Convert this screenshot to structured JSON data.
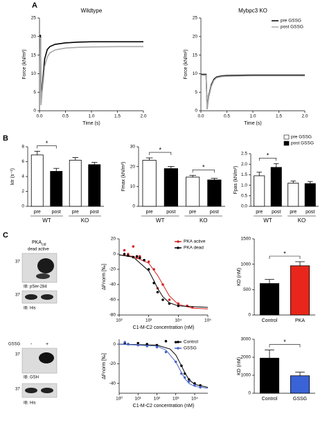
{
  "panels": [
    "A",
    "B",
    "C"
  ],
  "blots": {
    "top": {
      "title": "PKA",
      "title_sub": "cat",
      "lanes": "dead active",
      "rows": [
        {
          "marker": "37",
          "label": "IB: pSer-284"
        },
        {
          "marker": "37",
          "label": "IB: His"
        }
      ]
    },
    "bottom": {
      "title": "GSSG",
      "lanes": [
        "-",
        "+"
      ],
      "rows": [
        {
          "marker": "37",
          "label": "IB: GSH"
        },
        {
          "marker": "37",
          "label": "IB: His"
        }
      ]
    }
  },
  "chart_data": [
    {
      "type": "line",
      "title": "Wildtype",
      "xlabel": "Time (s)",
      "ylabel": "Force (kN/m²)",
      "xlim": [
        0,
        2
      ],
      "xticks": [
        {
          "value": 0,
          "label": "0.0"
        },
        {
          "value": 0.5,
          "label": "0.5"
        },
        {
          "value": 1,
          "label": "1.0"
        },
        {
          "value": 1.5,
          "label": "1.5"
        },
        {
          "value": 2,
          "label": "2.0"
        }
      ],
      "ylim": [
        0,
        25
      ],
      "yticks": [
        0,
        5,
        10,
        15,
        20,
        25
      ],
      "series": [
        {
          "name": "pre GSSG",
          "color": "#000000",
          "x": [
            0,
            0.02,
            0.03,
            0.05,
            0.08,
            0.1,
            0.15,
            0.2,
            0.3,
            0.5,
            0.75,
            1,
            1.5,
            2
          ],
          "values": [
            20.3,
            20.3,
            2,
            6,
            11,
            14,
            16.5,
            17.3,
            17.9,
            18.3,
            18.5,
            18.6,
            18.6,
            18.6
          ]
        },
        {
          "name": "post GSSG",
          "color": "#a8a8a8",
          "x": [
            0,
            0.02,
            0.03,
            0.05,
            0.08,
            0.1,
            0.15,
            0.2,
            0.3,
            0.5,
            0.75,
            1,
            1.5,
            2
          ],
          "values": [
            19.6,
            19.6,
            1.5,
            5,
            9,
            12,
            14.5,
            15.6,
            16.4,
            16.9,
            17.1,
            17.2,
            17.3,
            17.3
          ]
        }
      ]
    },
    {
      "type": "line",
      "title": "Mybpc3 KO",
      "xlabel": "Time (s)",
      "ylabel": "Force (kN/m²)",
      "xlim": [
        0,
        2
      ],
      "xticks": [
        {
          "value": 0,
          "label": "0.0"
        },
        {
          "value": 0.5,
          "label": "0.5"
        },
        {
          "value": 1,
          "label": "1.0"
        },
        {
          "value": 1.5,
          "label": "1.5"
        },
        {
          "value": 2,
          "label": "2.0"
        }
      ],
      "ylim": [
        0,
        25
      ],
      "yticks": [
        0,
        5,
        10,
        15,
        20,
        25
      ],
      "legend": "upper right",
      "series": [
        {
          "name": "pre GSSG",
          "color": "#000000",
          "x": [
            0,
            0.1,
            0.12,
            0.15,
            0.2,
            0.25,
            0.3,
            0.4,
            0.5,
            1,
            1.5,
            2
          ],
          "values": [
            9.8,
            9.8,
            0.5,
            4,
            7,
            8.5,
            9.1,
            9.4,
            9.5,
            9.6,
            9.6,
            9.6
          ]
        },
        {
          "name": "post GSSG",
          "color": "#a8a8a8",
          "x": [
            0,
            0.1,
            0.12,
            0.15,
            0.2,
            0.25,
            0.3,
            0.4,
            0.5,
            1,
            1.5,
            2
          ],
          "values": [
            9.6,
            9.6,
            0.4,
            3.6,
            6.6,
            8.2,
            8.9,
            9.2,
            9.3,
            9.4,
            9.4,
            9.4
          ]
        }
      ]
    },
    {
      "type": "bar",
      "ylabel": "ktr (s⁻¹)",
      "categories": [
        "pre",
        "post",
        "pre",
        "post"
      ],
      "groups": [
        "WT",
        "KO"
      ],
      "values": [
        6.9,
        4.7,
        6.2,
        5.6
      ],
      "errors": [
        0.5,
        0.4,
        0.35,
        0.3
      ],
      "colors": [
        "#ffffff",
        "#000000",
        "#ffffff",
        "#000000"
      ],
      "ylim": [
        0,
        8
      ],
      "yticks": [
        0,
        2,
        4,
        6,
        8
      ],
      "significance": [
        {
          "text": "*",
          "bars": [
            0,
            1
          ]
        }
      ]
    },
    {
      "type": "bar",
      "ylabel": "Fmax (kN/m²)",
      "categories": [
        "pre",
        "post",
        "pre",
        "post"
      ],
      "groups": [
        "WT",
        "KO"
      ],
      "values": [
        23.2,
        19,
        14.7,
        13.3
      ],
      "errors": [
        1.2,
        1.1,
        0.9,
        0.8
      ],
      "colors": [
        "#ffffff",
        "#000000",
        "#ffffff",
        "#000000"
      ],
      "ylim": [
        0,
        30
      ],
      "yticks": [
        0,
        10,
        20,
        30
      ],
      "significance": [
        {
          "text": "*",
          "bars": [
            0,
            1
          ]
        },
        {
          "text": "*",
          "bars": [
            2,
            3
          ]
        }
      ]
    },
    {
      "type": "bar",
      "ylabel": "Fpas (kN/m²)",
      "categories": [
        "pre",
        "post",
        "pre",
        "post"
      ],
      "groups": [
        "WT",
        "KO"
      ],
      "values": [
        1.45,
        1.85,
        1.1,
        1.08
      ],
      "errors": [
        0.17,
        0.18,
        0.1,
        0.1
      ],
      "colors": [
        "#ffffff",
        "#000000",
        "#ffffff",
        "#000000"
      ],
      "ylim": [
        0,
        2.5
      ],
      "yticks": [
        {
          "value": 0,
          "label": "0.0"
        },
        {
          "value": 0.5,
          "label": "0.5"
        },
        {
          "value": 1,
          "label": "1.0"
        },
        {
          "value": 1.5,
          "label": "1.5"
        },
        {
          "value": 2,
          "label": "2.0"
        },
        {
          "value": 2.5,
          "label": "2.5"
        }
      ],
      "significance": [
        {
          "text": "*",
          "bars": [
            0,
            1
          ]
        }
      ],
      "legend": [
        {
          "name": "pre GSSG",
          "color": "#ffffff"
        },
        {
          "name": "post GSSG",
          "color": "#000000"
        }
      ]
    },
    {
      "type": "scatter",
      "xlabel": "C1-M-C2 concentration (nM)",
      "ylabel": "ΔFnorm [‰]",
      "xlog": true,
      "xlim": [
        100,
        100000
      ],
      "xticks": [
        {
          "value": 100,
          "label": "10²"
        },
        {
          "value": 1000,
          "label": "10³"
        },
        {
          "value": 10000,
          "label": "10⁴"
        },
        {
          "value": 100000,
          "label": "10⁵"
        }
      ],
      "ylim": [
        -80,
        20
      ],
      "yticks": [
        20,
        0,
        -20,
        -40,
        -60,
        -80
      ],
      "legend": "upper right",
      "series": [
        {
          "name": "PKA active",
          "color": "#d42020",
          "x": [
            150,
            200,
            300,
            400,
            500,
            700,
            1000,
            1500,
            2000,
            3000,
            5000,
            10000,
            20000,
            30000
          ],
          "values": [
            5,
            0,
            10,
            -5,
            -3,
            -8,
            -10,
            -20,
            -45,
            -40,
            -60,
            -65,
            -68,
            -70
          ],
          "fit_x": [
            100,
            300,
            1000,
            2000,
            3000,
            5000,
            10000,
            30000,
            100000
          ],
          "fit_values": [
            -1,
            -3,
            -12,
            -28,
            -40,
            -55,
            -66,
            -71,
            -72
          ]
        },
        {
          "name": "PKA dead",
          "color": "#000000",
          "x": [
            150,
            200,
            300,
            400,
            500,
            700,
            1000,
            1500,
            2000,
            3000,
            5000,
            10000
          ],
          "values": [
            0,
            -2,
            -4,
            -3,
            -5,
            -8,
            -20,
            -38,
            -50,
            -60,
            -65,
            -68
          ],
          "fit_x": [
            100,
            300,
            1000,
            1500,
            2000,
            3000,
            5000,
            10000,
            100000
          ],
          "fit_values": [
            -1,
            -4,
            -22,
            -35,
            -45,
            -56,
            -64,
            -68,
            -70
          ]
        }
      ]
    },
    {
      "type": "bar",
      "ylabel": "KD (nM)",
      "categories": [
        "Control",
        "PKA"
      ],
      "values": [
        620,
        970
      ],
      "errors": [
        80,
        80
      ],
      "colors": [
        "#000000",
        "#e8261b"
      ],
      "ylim": [
        0,
        1500
      ],
      "yticks": [
        0,
        500,
        1000,
        1500
      ],
      "significance": [
        {
          "text": "*",
          "bars": [
            0,
            1
          ]
        }
      ]
    },
    {
      "type": "scatter",
      "xlabel": "C1-M-C2 concentration (nM)",
      "ylabel": "ΔFnorm [‰]",
      "xlog": true,
      "xlim": [
        1,
        50000
      ],
      "xticks": [
        {
          "value": 1,
          "label": "10⁰"
        },
        {
          "value": 10,
          "label": "10¹"
        },
        {
          "value": 100,
          "label": "10²"
        },
        {
          "value": 1000,
          "label": "10³"
        },
        {
          "value": 10000,
          "label": "10⁴"
        }
      ],
      "ylim": [
        -50,
        5
      ],
      "yticks": [
        0,
        -20,
        -40
      ],
      "legend": "upper right",
      "series": [
        {
          "name": "Control",
          "color": "#000000",
          "x": [
            2,
            3,
            10,
            30,
            100,
            300,
            1000,
            2000,
            3000,
            5000,
            10000,
            20000
          ],
          "values": [
            1,
            0,
            1,
            0,
            -1,
            3,
            2,
            -22,
            -30,
            -36,
            -40,
            -42
          ],
          "fit_x": [
            1,
            100,
            500,
            1000,
            2000,
            3000,
            5000,
            10000,
            50000
          ],
          "fit_values": [
            0,
            -1,
            -5,
            -11,
            -22,
            -29,
            -36,
            -41,
            -44
          ]
        },
        {
          "name": "GSSG",
          "color": "#4866c8",
          "x": [
            2,
            3,
            10,
            30,
            100,
            300,
            1000,
            2000,
            3000,
            5000,
            10000,
            20000
          ],
          "values": [
            2,
            0,
            -1,
            -2,
            -3,
            -8,
            -18,
            -30,
            -34,
            -38,
            -42,
            -44
          ],
          "fit_x": [
            1,
            100,
            300,
            1000,
            2000,
            3000,
            5000,
            10000,
            50000
          ],
          "fit_values": [
            0,
            -2,
            -6,
            -18,
            -29,
            -35,
            -40,
            -43,
            -45
          ]
        }
      ]
    },
    {
      "type": "bar",
      "ylabel": "KD (nM)",
      "categories": [
        "Control",
        "GSSG"
      ],
      "values": [
        1950,
        970
      ],
      "errors": [
        450,
        200
      ],
      "colors": [
        "#000000",
        "#3a63d8"
      ],
      "ylim": [
        0,
        3000
      ],
      "yticks": [
        0,
        1000,
        2000,
        3000
      ],
      "significance": [
        {
          "text": "*",
          "bars": [
            0,
            1
          ]
        }
      ]
    }
  ]
}
